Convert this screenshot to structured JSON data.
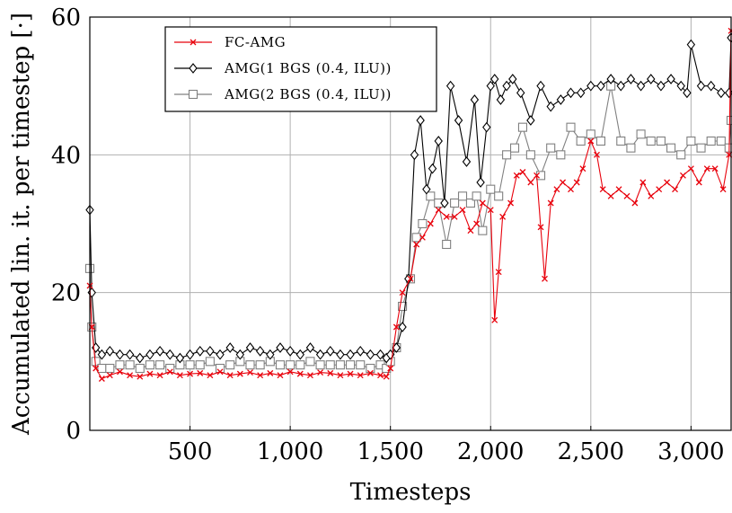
{
  "chart_data": {
    "type": "line",
    "title": "",
    "xlabel": "Timesteps",
    "ylabel": "Accumulated lin. it. per timestep [·]",
    "xlim": [
      0,
      3200
    ],
    "ylim": [
      0,
      60
    ],
    "xticks": [
      500,
      1000,
      1500,
      2000,
      2500,
      3000
    ],
    "xtick_labels": [
      "500",
      "1,000",
      "1,500",
      "2,000",
      "2,500",
      "3,000"
    ],
    "yticks": [
      0,
      20,
      40,
      60
    ],
    "ytick_labels": [
      "0",
      "20",
      "40",
      "60"
    ],
    "grid": true,
    "legend_position": "top-left",
    "series": [
      {
        "name": "FC-AMG",
        "color": "#e8000b",
        "marker": "cross",
        "x": [
          0,
          10,
          30,
          60,
          100,
          150,
          200,
          250,
          300,
          350,
          400,
          450,
          500,
          550,
          600,
          650,
          700,
          750,
          800,
          850,
          900,
          950,
          1000,
          1050,
          1100,
          1150,
          1200,
          1250,
          1300,
          1350,
          1400,
          1450,
          1480,
          1500,
          1530,
          1560,
          1600,
          1630,
          1660,
          1700,
          1740,
          1780,
          1820,
          1860,
          1900,
          1930,
          1960,
          2000,
          2020,
          2040,
          2060,
          2100,
          2130,
          2160,
          2200,
          2230,
          2250,
          2270,
          2300,
          2330,
          2360,
          2400,
          2430,
          2460,
          2500,
          2530,
          2560,
          2600,
          2640,
          2680,
          2720,
          2760,
          2800,
          2840,
          2880,
          2920,
          2960,
          3000,
          3040,
          3080,
          3120,
          3160,
          3190,
          3200
        ],
        "y": [
          21,
          15,
          9,
          7.5,
          8,
          8.5,
          8,
          7.8,
          8.2,
          8,
          8.5,
          8,
          8.2,
          8.3,
          8,
          8.5,
          8,
          8.2,
          8.4,
          8,
          8.3,
          8,
          8.5,
          8.2,
          8,
          8.4,
          8.3,
          8,
          8.2,
          8,
          8.3,
          8,
          7.8,
          9,
          15,
          20,
          22,
          27,
          28,
          30,
          32,
          31,
          31,
          32,
          29,
          30,
          33,
          32,
          16,
          23,
          31,
          33,
          37,
          37.5,
          36,
          37,
          29.5,
          22,
          33,
          35,
          36,
          35,
          36,
          38,
          42,
          40,
          35,
          34,
          35,
          34,
          33,
          36,
          34,
          35,
          36,
          35,
          37,
          38,
          36,
          38,
          38,
          35,
          40,
          58
        ]
      },
      {
        "name": "AMG(1 BGS (0.4, ILU))",
        "color": "#000000",
        "marker": "diamond",
        "x": [
          0,
          10,
          30,
          60,
          100,
          150,
          200,
          250,
          300,
          350,
          400,
          450,
          500,
          550,
          600,
          650,
          700,
          750,
          800,
          850,
          900,
          950,
          1000,
          1050,
          1100,
          1150,
          1200,
          1250,
          1300,
          1350,
          1400,
          1450,
          1480,
          1500,
          1530,
          1560,
          1590,
          1620,
          1650,
          1680,
          1710,
          1740,
          1770,
          1800,
          1840,
          1880,
          1920,
          1950,
          1980,
          2000,
          2020,
          2050,
          2080,
          2110,
          2150,
          2200,
          2250,
          2300,
          2350,
          2400,
          2450,
          2500,
          2550,
          2600,
          2650,
          2700,
          2750,
          2800,
          2850,
          2900,
          2950,
          2980,
          3000,
          3050,
          3100,
          3150,
          3190,
          3200
        ],
        "y": [
          32,
          20,
          12,
          11,
          11.5,
          11,
          11,
          10.5,
          11,
          11.5,
          11,
          10.5,
          11,
          11.5,
          11.5,
          11,
          12,
          11,
          12,
          11.5,
          11,
          12,
          11.5,
          11,
          12,
          11,
          11.5,
          11,
          11,
          11.5,
          11,
          11,
          10.5,
          11,
          12,
          15,
          22,
          40,
          45,
          35,
          38,
          42,
          33,
          50,
          45,
          39,
          48,
          36,
          44,
          50,
          51,
          48,
          50,
          51,
          49,
          45,
          50,
          47,
          48,
          49,
          49,
          50,
          50,
          51,
          50,
          51,
          50,
          51,
          50,
          51,
          50,
          49,
          56,
          50,
          50,
          49,
          49,
          57
        ]
      },
      {
        "name": "AMG(2 BGS (0.4, ILU))",
        "color": "#808080",
        "marker": "square",
        "x": [
          0,
          10,
          30,
          60,
          100,
          150,
          200,
          250,
          300,
          350,
          400,
          450,
          500,
          550,
          600,
          650,
          700,
          750,
          800,
          850,
          900,
          950,
          1000,
          1050,
          1100,
          1150,
          1200,
          1250,
          1300,
          1350,
          1400,
          1450,
          1480,
          1500,
          1530,
          1560,
          1600,
          1630,
          1660,
          1700,
          1740,
          1780,
          1820,
          1860,
          1900,
          1930,
          1960,
          2000,
          2040,
          2080,
          2120,
          2160,
          2200,
          2250,
          2300,
          2350,
          2400,
          2450,
          2500,
          2550,
          2600,
          2650,
          2700,
          2750,
          2800,
          2850,
          2900,
          2950,
          3000,
          3050,
          3100,
          3150,
          3190,
          3200
        ],
        "y": [
          23.5,
          15,
          10,
          9,
          9,
          9.5,
          9.5,
          9,
          9.5,
          9.5,
          9,
          9.5,
          9.5,
          9.5,
          10,
          9,
          9.5,
          10,
          9.5,
          9.5,
          10,
          9.5,
          9.5,
          9.5,
          10,
          9.5,
          9.5,
          9.5,
          9.5,
          9.5,
          9,
          9.5,
          9,
          10,
          12,
          18,
          22,
          28,
          30,
          34,
          33,
          27,
          33,
          34,
          33,
          34,
          29,
          35,
          34,
          40,
          41,
          44,
          40,
          37,
          41,
          40,
          44,
          42,
          43,
          42,
          50,
          42,
          41,
          43,
          42,
          42,
          41,
          40,
          42,
          41,
          42,
          42,
          41,
          45
        ]
      }
    ]
  }
}
